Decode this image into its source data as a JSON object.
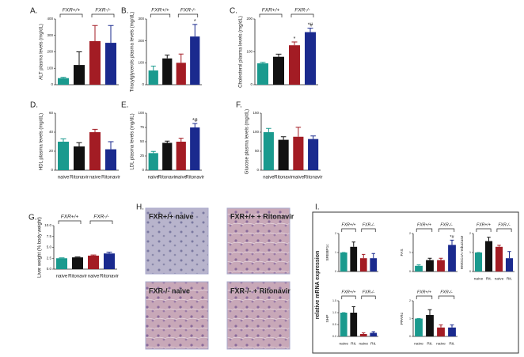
{
  "chart_data": [
    {
      "type": "bar",
      "letter": "A.",
      "ylabel": "ALT plasma levels (mg/dL)",
      "groups": [
        "FXR+/+",
        "FXR-/-"
      ],
      "colors": [
        "#1a9a8e",
        "#111111",
        "#a31c24",
        "#1a2a8e"
      ],
      "values": [
        40,
        120,
        265,
        255
      ],
      "errors": [
        5,
        80,
        95,
        105
      ],
      "annotations": [
        null,
        null,
        null,
        null
      ],
      "ylim": [
        0,
        400
      ],
      "yticks": [
        0,
        100,
        200,
        300,
        400
      ]
    },
    {
      "type": "bar",
      "letter": "B.",
      "ylabel": "Triacylglycerols plasma levels (mg/dL)",
      "groups": [
        "FXR+/+",
        "FXR-/-"
      ],
      "colors": [
        "#1a9a8e",
        "#111111",
        "#a31c24",
        "#1a2a8e"
      ],
      "values": [
        65,
        120,
        100,
        220
      ],
      "errors": [
        20,
        15,
        40,
        55
      ],
      "annotations": [
        null,
        null,
        null,
        "*"
      ],
      "ylim": [
        0,
        300
      ],
      "yticks": [
        0,
        100,
        200,
        300
      ]
    },
    {
      "type": "bar",
      "letter": "C.",
      "ylabel": "Cholesterol plasma levels (mg/dL)",
      "groups": [
        "FXR+/+",
        "FXR-/-"
      ],
      "colors": [
        "#1a9a8e",
        "#111111",
        "#a31c24",
        "#1a2a8e"
      ],
      "values": [
        65,
        85,
        120,
        160
      ],
      "errors": [
        3,
        8,
        10,
        12
      ],
      "annotations": [
        null,
        null,
        "*",
        "*#"
      ],
      "ylim": [
        0,
        200
      ],
      "yticks": [
        0,
        100,
        200
      ]
    },
    {
      "type": "bar",
      "letter": "D.",
      "ylabel": "HDL plasma levels (mg/dL)",
      "categories": [
        "naive",
        "Ritonavir",
        "naive",
        "Ritonavir"
      ],
      "colors": [
        "#1a9a8e",
        "#111111",
        "#a31c24",
        "#1a2a8e"
      ],
      "values": [
        30,
        25,
        40,
        22
      ],
      "errors": [
        3,
        4,
        3,
        8
      ],
      "annotations": [
        null,
        null,
        null,
        null
      ],
      "ylim": [
        0,
        60
      ],
      "yticks": [
        0,
        20,
        40,
        60
      ]
    },
    {
      "type": "bar",
      "letter": "E.",
      "ylabel": "LDL plasma levels (mg/dL)",
      "categories": [
        "naive",
        "Ritonavir",
        "naive",
        "Ritonavir"
      ],
      "colors": [
        "#1a9a8e",
        "#111111",
        "#a31c24",
        "#1a2a8e"
      ],
      "values": [
        30,
        48,
        50,
        75
      ],
      "errors": [
        3,
        3,
        6,
        7
      ],
      "annotations": [
        null,
        null,
        null,
        "*#"
      ],
      "ylim": [
        0,
        100
      ],
      "yticks": [
        0,
        25,
        50,
        75,
        100
      ]
    },
    {
      "type": "bar",
      "letter": "F.",
      "ylabel": "Glucose plasma levels (mg/dL)",
      "categories": [
        "naive",
        "Ritonavir",
        "naive",
        "Ritonavir"
      ],
      "colors": [
        "#1a9a8e",
        "#111111",
        "#a31c24",
        "#1a2a8e"
      ],
      "values": [
        100,
        80,
        88,
        82
      ],
      "errors": [
        10,
        8,
        25,
        8
      ],
      "annotations": [
        null,
        null,
        null,
        null
      ],
      "ylim": [
        0,
        150
      ],
      "yticks": [
        0,
        50,
        100,
        150
      ]
    },
    {
      "type": "bar",
      "letter": "G.",
      "ylabel": "Liver weight (% body weight)",
      "groups": [
        "FXR+/+",
        "FXR-/-"
      ],
      "categories": [
        "naive",
        "Ritonavir",
        "naive",
        "Ritonavir"
      ],
      "colors": [
        "#1a9a8e",
        "#111111",
        "#a31c24",
        "#1a2a8e"
      ],
      "values": [
        2.5,
        2.7,
        3.1,
        3.6
      ],
      "errors": [
        0.1,
        0.1,
        0.15,
        0.3
      ],
      "annotations": [
        null,
        null,
        null,
        null
      ],
      "ylim": [
        0,
        10
      ],
      "yticks": [
        {
          "value": 0,
          "label": "0.0"
        },
        2.5,
        {
          "value": 5,
          "label": "5.0"
        },
        7.5,
        {
          "value": 10,
          "label": "10.0"
        }
      ]
    },
    {
      "type": "bar",
      "ylabel": "SREBP1c",
      "groups": [
        "FXR+/+",
        "FXR-/-"
      ],
      "colors": [
        "#1a9a8e",
        "#111111",
        "#a31c24",
        "#1a2a8e"
      ],
      "values": [
        1.0,
        1.3,
        0.7,
        0.7
      ],
      "errors": [
        0,
        0.25,
        0.2,
        0.25
      ],
      "annotations": [
        null,
        null,
        null,
        null
      ],
      "ylim": [
        0,
        2
      ],
      "yticks": [
        0,
        1,
        2
      ]
    },
    {
      "type": "bar",
      "ylabel": "FAS",
      "groups": [
        "FXR+/+",
        "FXR-/-"
      ],
      "colors": [
        "#1a9a8e",
        "#111111",
        "#a31c24",
        "#1a2a8e"
      ],
      "values": [
        0.3,
        0.6,
        0.6,
        1.4
      ],
      "errors": [
        0.05,
        0.1,
        0.1,
        0.25
      ],
      "annotations": [
        null,
        null,
        null,
        "*#"
      ],
      "ylim": [
        0,
        2
      ],
      "yticks": [
        0,
        1,
        2
      ]
    },
    {
      "type": "bar",
      "ylabel": "HMGCoA reductase",
      "groups": [
        "FXR+/+",
        "FXR-/-"
      ],
      "categories": [
        "naive",
        "Rit.",
        "naive",
        "Rit."
      ],
      "colors": [
        "#1a9a8e",
        "#111111",
        "#a31c24",
        "#1a2a8e"
      ],
      "values": [
        1.0,
        1.6,
        1.3,
        0.7
      ],
      "errors": [
        0,
        0.2,
        0.08,
        0.35
      ],
      "annotations": [
        null,
        null,
        null,
        null
      ],
      "ylim": [
        0,
        2
      ],
      "yticks": [
        0,
        1,
        2
      ]
    },
    {
      "type": "bar",
      "ylabel": "SHP",
      "groups": [
        "FXR+/+",
        "FXR-/-"
      ],
      "categories": [
        "naive",
        "Rit.",
        "naive",
        "Rit."
      ],
      "colors": [
        "#1a9a8e",
        "#111111",
        "#a31c24",
        "#1a2a8e"
      ],
      "values": [
        1.0,
        1.0,
        0.1,
        0.15
      ],
      "errors": [
        0,
        0.25,
        0.05,
        0.05
      ],
      "annotations": [
        null,
        null,
        null,
        null
      ],
      "ylim": [
        0,
        1.5
      ],
      "yticks": [
        {
          "value": 0,
          "label": "0.0"
        },
        0.5,
        {
          "value": 1,
          "label": "1.0"
        },
        1.5
      ]
    },
    {
      "type": "bar",
      "ylabel": "PPARα",
      "groups": [
        "FXR+/+",
        "FXR-/-"
      ],
      "categories": [
        "naive",
        "Rit.",
        "naive",
        "Rit."
      ],
      "colors": [
        "#1a9a8e",
        "#111111",
        "#a31c24",
        "#1a2a8e"
      ],
      "values": [
        1.0,
        1.2,
        0.5,
        0.5
      ],
      "errors": [
        0,
        0.3,
        0.15,
        0.15
      ],
      "annotations": [
        null,
        null,
        null,
        null
      ],
      "ylim": [
        0,
        2
      ],
      "yticks": [
        0,
        1,
        2
      ]
    }
  ],
  "histology": {
    "letter": "H.",
    "labels": [
      "FXR+/+ naive",
      "FXR+/+ + Ritonavir",
      "FXR-/- naive",
      "FXR-/- + Ritonavir"
    ]
  },
  "mrna": {
    "letter": "I.",
    "ylabel": "relative mRNA expression"
  }
}
